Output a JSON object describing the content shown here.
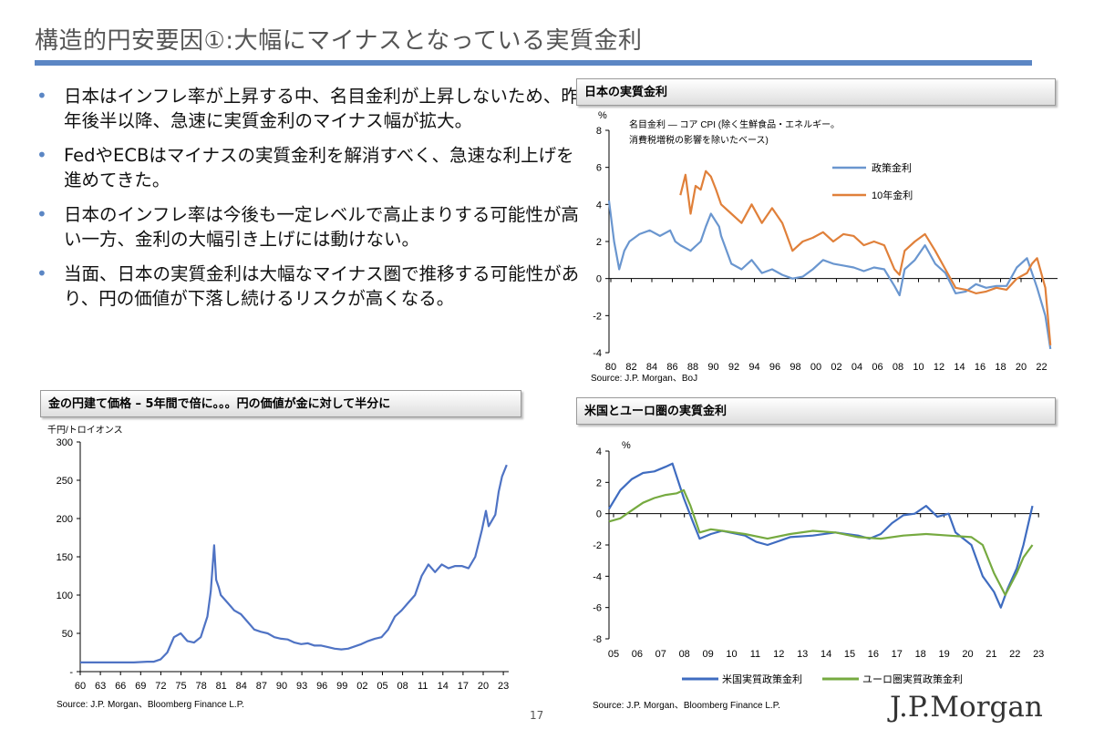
{
  "header": {
    "title": "構造的円安要因①:大幅にマイナスとなっている実質金利"
  },
  "bullets": [
    "日本はインフレ率が上昇する中、名目金利が上昇しないため、昨年後半以降、急速に実質金利のマイナス幅が拡大。",
    "FedやECBはマイナスの実質金利を解消すべく、急速な利上げを進めてきた。",
    "日本のインフレ率は今後も一定レベルで高止まりする可能性が高い一方、金利の大幅引き上げには動けない。",
    "当面、日本の実質金利は大幅なマイナス圏で推移する可能性があり、円の価値が下落し続けるリスクが高くなる。"
  ],
  "footer": {
    "page": "17",
    "logo": "J.P.Morgan"
  },
  "chart_data": [
    {
      "id": "jp",
      "type": "line",
      "title": "日本の実質金利",
      "ylabel": "%",
      "annotation": [
        "名目金利 — コア CPI (除く生鮮食品・エネルギー。",
        "消費税増税の影響を除いたベース)"
      ],
      "source": "Source: J.P. Morgan、BoJ",
      "xlim": [
        1980,
        2024
      ],
      "ylim": [
        -4,
        8
      ],
      "yticks": [
        -4,
        -2,
        0,
        2,
        4,
        6,
        8
      ],
      "xtick_labels": [
        "80",
        "82",
        "84",
        "86",
        "88",
        "90",
        "92",
        "94",
        "96",
        "98",
        "00",
        "02",
        "04",
        "06",
        "08",
        "10",
        "12",
        "14",
        "16",
        "18",
        "20",
        "22"
      ],
      "legend_position": "top-right",
      "series": [
        {
          "name": "政策金利",
          "color": "#6a96cf",
          "x": [
            1980,
            1980.5,
            1981,
            1981.5,
            1982,
            1983,
            1984,
            1985,
            1986,
            1986.5,
            1987,
            1988,
            1989,
            1989.5,
            1990,
            1990.8,
            1991,
            1992,
            1993,
            1994,
            1995,
            1996,
            1997,
            1998,
            1999,
            2000,
            2001,
            2002,
            2003,
            2004,
            2005,
            2006,
            2007,
            2008,
            2008.5,
            2009,
            2010,
            2011,
            2012,
            2013,
            2014,
            2015,
            2016,
            2017,
            2018,
            2019,
            2020,
            2021,
            2022,
            2022.8,
            2023.3
          ],
          "y": [
            4.2,
            2.0,
            0.5,
            1.5,
            2.0,
            2.4,
            2.6,
            2.3,
            2.6,
            2.0,
            1.8,
            1.5,
            2.0,
            2.8,
            3.5,
            2.8,
            2.3,
            0.8,
            0.5,
            1.0,
            0.3,
            0.5,
            0.2,
            0.0,
            0.1,
            0.5,
            1.0,
            0.8,
            0.7,
            0.6,
            0.4,
            0.6,
            0.5,
            -0.4,
            -0.9,
            0.5,
            1.0,
            1.8,
            0.8,
            0.3,
            -0.8,
            -0.7,
            -0.3,
            -0.5,
            -0.4,
            -0.4,
            0.6,
            1.1,
            -0.5,
            -2.0,
            -3.8
          ]
        },
        {
          "name": "10年金利",
          "color": "#e0803a",
          "x": [
            1987,
            1987.5,
            1988,
            1988.5,
            1989,
            1989.5,
            1990,
            1990.5,
            1991,
            1992,
            1993,
            1994,
            1995,
            1996,
            1997,
            1998,
            1999,
            2000,
            2001,
            2002,
            2003,
            2004,
            2005,
            2006,
            2007,
            2008,
            2008.5,
            2009,
            2010,
            2011,
            2012,
            2013,
            2014,
            2015,
            2016,
            2017,
            2018,
            2019,
            2020,
            2021,
            2021.5,
            2022,
            2022.8,
            2023.3
          ],
          "y": [
            4.5,
            5.6,
            3.5,
            5.0,
            4.8,
            5.8,
            5.5,
            4.8,
            4.0,
            3.5,
            3.0,
            4.0,
            3.0,
            3.8,
            3.0,
            1.5,
            2.0,
            2.2,
            2.5,
            2.0,
            2.4,
            2.3,
            1.8,
            2.0,
            1.8,
            0.5,
            0.2,
            1.5,
            2.0,
            2.4,
            1.5,
            0.5,
            -0.5,
            -0.6,
            -0.8,
            -0.7,
            -0.5,
            -0.6,
            0.0,
            0.3,
            0.8,
            1.1,
            -0.5,
            -3.6
          ]
        }
      ]
    },
    {
      "id": "gold",
      "type": "line",
      "title": "金の円建て価格 – 5年間で倍に。。。円の価値が金に対して半分に",
      "ylabel": "千円/トロイオンス",
      "source": "Source: J.P. Morgan、Bloomberg Finance L.P.",
      "xlim": [
        1960,
        2024
      ],
      "ylim": [
        0,
        300
      ],
      "yticks": [
        0,
        50,
        100,
        150,
        200,
        250,
        300
      ],
      "ytick_labels": [
        "-",
        "50",
        "100",
        "150",
        "200",
        "250",
        "300"
      ],
      "xtick_labels": [
        "60",
        "63",
        "66",
        "69",
        "72",
        "75",
        "78",
        "81",
        "84",
        "87",
        "90",
        "93",
        "96",
        "99",
        "02",
        "05",
        "08",
        "11",
        "14",
        "17",
        "20",
        "23"
      ],
      "series": [
        {
          "name": "",
          "color": "#4f73c4",
          "x": [
            1960,
            1968,
            1970,
            1971,
            1972,
            1973,
            1974,
            1975,
            1976,
            1977,
            1978,
            1979,
            1979.5,
            1980.0,
            1980.3,
            1980.7,
            1981,
            1982,
            1983,
            1984,
            1985,
            1986,
            1987,
            1988,
            1989,
            1990,
            1991,
            1992,
            1993,
            1994,
            1995,
            1996,
            1997,
            1998,
            1999,
            2000,
            2001,
            2002,
            2003,
            2004,
            2005,
            2006,
            2007,
            2008,
            2009,
            2010,
            2011,
            2012,
            2013,
            2014,
            2015,
            2016,
            2017,
            2018,
            2019,
            2020,
            2020.6,
            2021,
            2022,
            2022.5,
            2023,
            2023.7
          ],
          "y": [
            12,
            12,
            13,
            13,
            16,
            25,
            45,
            50,
            40,
            38,
            45,
            72,
            105,
            165,
            120,
            110,
            100,
            90,
            80,
            75,
            65,
            55,
            52,
            50,
            45,
            43,
            42,
            38,
            36,
            37,
            34,
            34,
            32,
            30,
            29,
            30,
            33,
            36,
            40,
            43,
            45,
            55,
            72,
            80,
            90,
            100,
            125,
            140,
            130,
            140,
            135,
            138,
            138,
            135,
            150,
            185,
            210,
            190,
            205,
            235,
            255,
            270
          ]
        }
      ]
    },
    {
      "id": "us_eu",
      "type": "line",
      "title": "米国とユーロ圏の実質金利",
      "ylabel": "%",
      "source": "Source: J.P. Morgan、Bloomberg Finance L.P.",
      "xlim": [
        2005,
        2024
      ],
      "ylim": [
        -8,
        4
      ],
      "yticks": [
        -8,
        -6,
        -4,
        -2,
        0,
        2,
        4
      ],
      "xtick_labels": [
        "05",
        "06",
        "07",
        "08",
        "09",
        "10",
        "11",
        "12",
        "13",
        "14",
        "15",
        "16",
        "17",
        "18",
        "19",
        "20",
        "21",
        "22",
        "23"
      ],
      "legend_position": "bottom",
      "series": [
        {
          "name": "米国実質政策金利",
          "color": "#3f6cc0",
          "x": [
            2005,
            2005.5,
            2006,
            2006.5,
            2007,
            2007.5,
            2007.8,
            2008.3,
            2008.7,
            2009,
            2009.5,
            2010,
            2011,
            2011.5,
            2012,
            2013,
            2014,
            2015,
            2016,
            2016.5,
            2017,
            2017.5,
            2018,
            2018.5,
            2019,
            2019.5,
            2020,
            2020.3,
            2021,
            2021.5,
            2022,
            2022.3,
            2022.6,
            2023,
            2023.3,
            2023.7
          ],
          "y": [
            0.3,
            1.5,
            2.2,
            2.6,
            2.7,
            3.0,
            3.2,
            1.0,
            -0.5,
            -1.6,
            -1.3,
            -1.1,
            -1.4,
            -1.8,
            -2.0,
            -1.5,
            -1.4,
            -1.2,
            -1.4,
            -1.6,
            -1.3,
            -0.6,
            -0.1,
            0.0,
            0.5,
            -0.2,
            0.0,
            -1.2,
            -2.0,
            -4.0,
            -5.0,
            -6.0,
            -4.8,
            -3.5,
            -2.0,
            0.5
          ]
        },
        {
          "name": "ユーロ圏実質政策金利",
          "color": "#76aa40",
          "x": [
            2005,
            2005.5,
            2006,
            2006.5,
            2007,
            2007.5,
            2008,
            2008.3,
            2008.6,
            2009,
            2009.5,
            2010,
            2011,
            2012,
            2013,
            2014,
            2015,
            2016,
            2017,
            2018,
            2019,
            2020,
            2021,
            2021.5,
            2022,
            2022.5,
            2023,
            2023.3,
            2023.7
          ],
          "y": [
            -0.5,
            -0.3,
            0.2,
            0.7,
            1.0,
            1.2,
            1.3,
            1.5,
            0.5,
            -1.2,
            -1.0,
            -1.1,
            -1.3,
            -1.6,
            -1.3,
            -1.1,
            -1.2,
            -1.5,
            -1.6,
            -1.4,
            -1.3,
            -1.4,
            -1.5,
            -2.0,
            -3.8,
            -5.2,
            -3.8,
            -2.8,
            -2.0
          ]
        }
      ]
    }
  ]
}
